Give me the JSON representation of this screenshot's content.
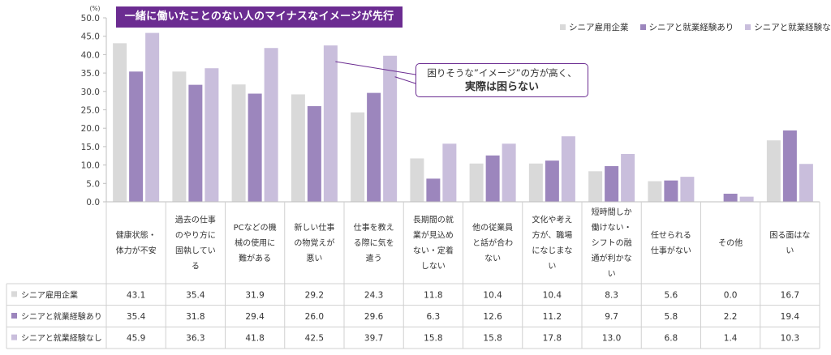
{
  "banner": {
    "title": "一緒に働いたことのない人のマイナスなイメージが先行"
  },
  "callout": {
    "line1": "困りそうな”イメージ”の方が高く、",
    "line2": "実際は困らない"
  },
  "chart_data": {
    "type": "bar",
    "unit": "(%)",
    "ylim": [
      0,
      50
    ],
    "yticks": [
      "0.0",
      "5.0",
      "10.0",
      "15.0",
      "20.0",
      "25.0",
      "30.0",
      "35.0",
      "40.0",
      "45.0",
      "50.0"
    ],
    "legend_position": "top-right",
    "categories": [
      [
        "健康状態・",
        "体力が不安"
      ],
      [
        "過去の仕事",
        "のやり方に",
        "固執してい",
        "る"
      ],
      [
        "PCなどの機",
        "械の使用に",
        "難がある"
      ],
      [
        "新しい仕事",
        "の物覚えが",
        "悪い"
      ],
      [
        "仕事を教え",
        "る際に気を",
        "遣う"
      ],
      [
        "長期間の就",
        "業が見込め",
        "ない・定着",
        "しない"
      ],
      [
        "他の従業員",
        "と話が合わ",
        "ない"
      ],
      [
        "文化や考え",
        "方が、職場",
        "になじまな",
        "い"
      ],
      [
        "短時間しか",
        "働けない・",
        "シフトの融",
        "通が利かな",
        "い"
      ],
      [
        "任せられる",
        "仕事がない"
      ],
      [
        "その他"
      ],
      [
        "困る面はな",
        "い"
      ]
    ],
    "series": [
      {
        "name": "シニア雇用企業",
        "color": "#d9d9d9",
        "values": [
          43.1,
          35.4,
          31.9,
          29.2,
          24.3,
          11.8,
          10.4,
          10.4,
          8.3,
          5.6,
          0.0,
          16.7
        ],
        "labels": [
          "43.1",
          "35.4",
          "31.9",
          "29.2",
          "24.3",
          "11.8",
          "10.4",
          "10.4",
          "8.3",
          "5.6",
          "0.0",
          "16.7"
        ]
      },
      {
        "name": "シニアと就業経験あり",
        "color": "#9c86bd",
        "values": [
          35.4,
          31.8,
          29.4,
          26.0,
          29.6,
          6.3,
          12.6,
          11.2,
          9.7,
          5.8,
          2.2,
          19.4
        ],
        "labels": [
          "35.4",
          "31.8",
          "29.4",
          "26.0",
          "29.6",
          "6.3",
          "12.6",
          "11.2",
          "9.7",
          "5.8",
          "2.2",
          "19.4"
        ]
      },
      {
        "name": "シニアと就業経験なし",
        "color": "#c9bedc",
        "values": [
          45.9,
          36.3,
          41.8,
          42.5,
          39.7,
          15.8,
          15.8,
          17.8,
          13.0,
          6.8,
          1.4,
          10.3
        ],
        "labels": [
          "45.9",
          "36.3",
          "41.8",
          "42.5",
          "39.7",
          "15.8",
          "15.8",
          "17.8",
          "13.0",
          "6.8",
          "1.4",
          "10.3"
        ]
      }
    ]
  }
}
